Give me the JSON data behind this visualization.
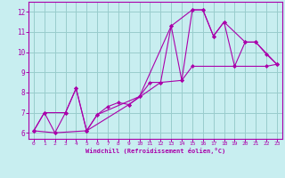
{
  "xlabel": "Windchill (Refroidissement éolien,°C)",
  "xlim": [
    -0.5,
    23.5
  ],
  "ylim": [
    5.7,
    12.5
  ],
  "xticks": [
    0,
    1,
    2,
    3,
    4,
    5,
    6,
    7,
    8,
    9,
    10,
    11,
    12,
    13,
    14,
    15,
    16,
    17,
    18,
    19,
    20,
    21,
    22,
    23
  ],
  "yticks": [
    6,
    7,
    8,
    9,
    10,
    11,
    12
  ],
  "background_color": "#c8eef0",
  "line_color": "#aa00aa",
  "grid_color": "#99cccc",
  "series1": [
    [
      0,
      6.1
    ],
    [
      1,
      7.0
    ],
    [
      2,
      6.0
    ],
    [
      3,
      7.0
    ],
    [
      4,
      8.2
    ],
    [
      5,
      6.1
    ],
    [
      6,
      6.9
    ],
    [
      7,
      7.3
    ],
    [
      8,
      7.5
    ],
    [
      9,
      7.4
    ],
    [
      10,
      7.8
    ],
    [
      11,
      8.5
    ],
    [
      12,
      8.5
    ],
    [
      13,
      11.3
    ],
    [
      14,
      8.6
    ],
    [
      15,
      12.1
    ],
    [
      16,
      12.1
    ],
    [
      17,
      10.8
    ],
    [
      18,
      11.5
    ],
    [
      19,
      9.3
    ],
    [
      20,
      10.5
    ],
    [
      21,
      10.5
    ],
    [
      22,
      9.9
    ],
    [
      23,
      9.4
    ]
  ],
  "series2": [
    [
      0,
      6.1
    ],
    [
      1,
      7.0
    ],
    [
      3,
      7.0
    ],
    [
      4,
      8.2
    ],
    [
      5,
      6.1
    ],
    [
      6,
      6.9
    ],
    [
      10,
      7.8
    ],
    [
      13,
      11.3
    ],
    [
      15,
      12.1
    ],
    [
      16,
      12.1
    ],
    [
      17,
      10.8
    ],
    [
      18,
      11.5
    ],
    [
      20,
      10.5
    ],
    [
      21,
      10.5
    ],
    [
      23,
      9.4
    ]
  ],
  "series3": [
    [
      0,
      6.1
    ],
    [
      2,
      6.0
    ],
    [
      5,
      6.1
    ],
    [
      9,
      7.4
    ],
    [
      12,
      8.5
    ],
    [
      14,
      8.6
    ],
    [
      15,
      9.3
    ],
    [
      19,
      9.3
    ],
    [
      22,
      9.3
    ],
    [
      23,
      9.4
    ]
  ]
}
